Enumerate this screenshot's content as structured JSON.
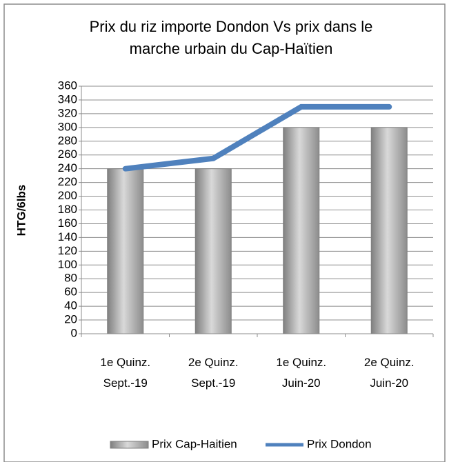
{
  "chart_data": {
    "type": "bar",
    "title": [
      "Prix du riz importe Dondon Vs prix dans le",
      "marche urbain du Cap-Haïtien"
    ],
    "y_label": "HTG/6lbs",
    "categories": [
      "1e Quinz.\nSept.-19",
      "2e Quinz.\nSept.-19",
      "1e Quinz.\nJuin-20",
      "2e Quinz.\nJuin-20"
    ],
    "series": [
      {
        "name": "Prix Cap-Haitien",
        "type": "bar",
        "color": "#a6a6a6",
        "values": [
          240,
          240,
          300,
          300
        ]
      },
      {
        "name": "Prix Dondon",
        "type": "line",
        "color": "#4f81bd",
        "values": [
          240,
          255,
          330,
          330
        ]
      }
    ],
    "ylim": [
      0,
      360
    ],
    "yticks": [
      0,
      20,
      40,
      60,
      80,
      100,
      120,
      140,
      160,
      180,
      200,
      220,
      240,
      260,
      280,
      300,
      320,
      340,
      360
    ],
    "grid": true,
    "legend": "bottom"
  }
}
